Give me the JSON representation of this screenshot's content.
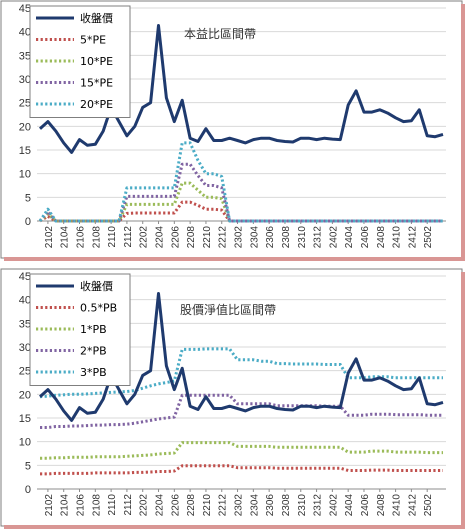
{
  "colors": {
    "close": "#1f3a6e",
    "band1": "#c0504d",
    "band2": "#9bbb59",
    "band3": "#8064a2",
    "band4": "#4bacc6",
    "frame_shadow": "#d99694",
    "grid": "#d9d9d9"
  },
  "chart_data": [
    {
      "type": "line",
      "title": "本益比區間帶",
      "ylim": [
        0,
        45
      ],
      "yticks": [
        0,
        5,
        10,
        15,
        20,
        25,
        30,
        35,
        40,
        45
      ],
      "grid": true,
      "legend_position": "top-left",
      "x_tick_labels": [
        "2102",
        "2104",
        "2106",
        "2108",
        "2110",
        "2112",
        "2202",
        "2204",
        "2206",
        "2208",
        "2210",
        "2212",
        "2302",
        "2304",
        "2306",
        "2308",
        "2310",
        "2312",
        "2402",
        "2404",
        "2406",
        "2408",
        "2410",
        "2412",
        "2502"
      ],
      "series": [
        {
          "name": "收盤價",
          "style": "solid",
          "color_key": "close",
          "values": [
            19.5,
            21,
            19,
            16.5,
            14.5,
            17.2,
            16,
            16.2,
            19,
            24,
            21,
            18,
            20,
            24,
            25,
            41.3,
            26,
            21,
            25.5,
            17.5,
            16.8,
            19.5,
            17,
            17,
            17.5,
            17,
            16.5,
            17.2,
            17.5,
            17.5,
            17,
            16.8,
            16.7,
            17.5,
            17.5,
            17.2,
            17.5,
            17.3,
            17.2,
            24.5,
            27.5,
            23,
            23,
            23.5,
            22.8,
            21.8,
            21,
            21.2,
            23.5,
            18,
            17.8,
            18.3
          ]
        },
        {
          "name": "5*PE",
          "style": "dotted",
          "color_key": "band1",
          "values": [
            0,
            1,
            0,
            0,
            0,
            0,
            0,
            0,
            0,
            0,
            0,
            1.6,
            1.7,
            1.7,
            1.7,
            1.7,
            1.7,
            1.7,
            4,
            4,
            3.3,
            2.5,
            2.5,
            2.3,
            0,
            0,
            0,
            0,
            0,
            0,
            0,
            0,
            0,
            0,
            0,
            0,
            0,
            0,
            0,
            0,
            0,
            0,
            0,
            0,
            0,
            0,
            0,
            0,
            0,
            0,
            0,
            0
          ]
        },
        {
          "name": "10*PE",
          "style": "dotted",
          "color_key": "band2",
          "values": [
            0,
            1.5,
            0,
            0,
            0,
            0,
            0,
            0,
            0,
            0,
            0,
            3.5,
            3.5,
            3.5,
            3.5,
            3.5,
            3.5,
            3.5,
            8,
            8,
            6.5,
            5,
            5,
            4.7,
            0,
            0,
            0,
            0,
            0,
            0,
            0,
            0,
            0,
            0,
            0,
            0,
            0,
            0,
            0,
            0,
            0,
            0,
            0,
            0,
            0,
            0,
            0,
            0,
            0,
            0,
            0,
            0
          ]
        },
        {
          "name": "15*PE",
          "style": "dotted",
          "color_key": "band3",
          "values": [
            0,
            2,
            0,
            0,
            0,
            0,
            0,
            0,
            0,
            0,
            0,
            5.2,
            5.2,
            5.2,
            5.2,
            5.2,
            5.2,
            5.2,
            12,
            12,
            9.6,
            7.5,
            7.5,
            7,
            0,
            0,
            0,
            0,
            0,
            0,
            0,
            0,
            0,
            0,
            0,
            0,
            0,
            0,
            0,
            0,
            0,
            0,
            0,
            0,
            0,
            0,
            0,
            0,
            0,
            0,
            0,
            0
          ]
        },
        {
          "name": "20*PE",
          "style": "dotted",
          "color_key": "band4",
          "values": [
            0,
            2.5,
            0,
            0,
            0,
            0,
            0,
            0,
            0,
            0,
            0,
            7,
            7,
            7,
            7,
            7,
            7,
            7,
            16.5,
            16.5,
            12.8,
            10,
            10,
            9.4,
            0,
            0,
            0,
            0,
            0,
            0,
            0,
            0,
            0,
            0,
            0,
            0,
            0,
            0,
            0,
            0,
            0,
            0,
            0,
            0,
            0,
            0,
            0,
            0,
            0,
            0,
            0,
            0
          ]
        }
      ]
    },
    {
      "type": "line",
      "title": "股價淨值比區間帶",
      "ylim": [
        0,
        45
      ],
      "yticks": [
        0,
        5,
        10,
        15,
        20,
        25,
        30,
        35,
        40,
        45
      ],
      "grid": true,
      "legend_position": "top-left",
      "x_tick_labels": [
        "2102",
        "2104",
        "2106",
        "2108",
        "2110",
        "2112",
        "2202",
        "2204",
        "2206",
        "2208",
        "2210",
        "2212",
        "2302",
        "2304",
        "2306",
        "2308",
        "2310",
        "2312",
        "2402",
        "2404",
        "2406",
        "2408",
        "2410",
        "2412",
        "2502"
      ],
      "series": [
        {
          "name": "收盤價",
          "style": "solid",
          "color_key": "close",
          "values": [
            19.5,
            21,
            19,
            16.5,
            14.5,
            17.2,
            16,
            16.2,
            19,
            24,
            21,
            18,
            20,
            24,
            25,
            41.3,
            26,
            21,
            25.5,
            17.5,
            16.8,
            19.5,
            17,
            17,
            17.5,
            17,
            16.5,
            17.2,
            17.5,
            17.5,
            17,
            16.8,
            16.7,
            17.5,
            17.5,
            17.2,
            17.5,
            17.3,
            17.2,
            24.5,
            27.5,
            23,
            23,
            23.5,
            22.8,
            21.8,
            21,
            21.2,
            23.5,
            18,
            17.8,
            18.3
          ]
        },
        {
          "name": "0.5*PB",
          "style": "dotted",
          "color_key": "band1",
          "values": [
            3.2,
            3.2,
            3.3,
            3.3,
            3.3,
            3.3,
            3.3,
            3.4,
            3.4,
            3.4,
            3.4,
            3.4,
            3.5,
            3.5,
            3.6,
            3.7,
            3.7,
            3.8,
            4.9,
            4.9,
            4.9,
            4.9,
            4.9,
            4.9,
            4.9,
            4.5,
            4.5,
            4.5,
            4.5,
            4.5,
            4.4,
            4.4,
            4.4,
            4.4,
            4.4,
            4.4,
            4.4,
            4.4,
            4.4,
            3.9,
            3.9,
            3.9,
            4,
            4,
            4,
            3.9,
            3.9,
            3.9,
            3.9,
            3.9,
            3.9,
            3.9
          ]
        },
        {
          "name": "1*PB",
          "style": "dotted",
          "color_key": "band2",
          "values": [
            6.5,
            6.5,
            6.6,
            6.6,
            6.7,
            6.7,
            6.7,
            6.8,
            6.8,
            6.8,
            6.8,
            6.9,
            7,
            7.1,
            7.2,
            7.4,
            7.5,
            7.6,
            9.8,
            9.8,
            9.8,
            9.8,
            9.8,
            9.8,
            9.8,
            9,
            9,
            9,
            9,
            9,
            8.8,
            8.8,
            8.8,
            8.8,
            8.8,
            8.8,
            8.8,
            8.8,
            8.8,
            7.8,
            7.8,
            7.8,
            8,
            8,
            8,
            7.8,
            7.8,
            7.8,
            7.8,
            7.7,
            7.7,
            7.7
          ]
        },
        {
          "name": "2*PB",
          "style": "dotted",
          "color_key": "band3",
          "values": [
            13,
            13,
            13.2,
            13.2,
            13.3,
            13.3,
            13.4,
            13.5,
            13.5,
            13.6,
            13.6,
            13.7,
            13.9,
            14.2,
            14.5,
            14.8,
            15,
            15.2,
            19.8,
            19.8,
            19.8,
            19.8,
            19.8,
            19.8,
            19.8,
            18,
            18,
            18,
            18,
            18,
            17.6,
            17.6,
            17.6,
            17.6,
            17.6,
            17.6,
            17.5,
            17.5,
            17.5,
            15.6,
            15.6,
            15.6,
            15.8,
            15.8,
            15.8,
            15.7,
            15.7,
            15.7,
            15.7,
            15.6,
            15.6,
            15.6
          ]
        },
        {
          "name": "3*PB",
          "style": "dotted",
          "color_key": "band4",
          "values": [
            19.5,
            19.6,
            19.8,
            19.9,
            20,
            20,
            20.1,
            20.2,
            20.3,
            20.4,
            20.5,
            20.6,
            20.8,
            21.3,
            21.8,
            22.2,
            22.5,
            22.8,
            29.5,
            29.5,
            29.5,
            29.6,
            29.6,
            29.6,
            29.6,
            27.3,
            27.3,
            27.3,
            27,
            27,
            26.5,
            26.5,
            26.4,
            26.4,
            26.4,
            26.4,
            26.3,
            26.3,
            26.3,
            23.5,
            23.5,
            23.5,
            23.7,
            23.7,
            23.7,
            23.5,
            23.5,
            23.5,
            23.5,
            23.5,
            23.5,
            23.5
          ]
        }
      ]
    }
  ]
}
